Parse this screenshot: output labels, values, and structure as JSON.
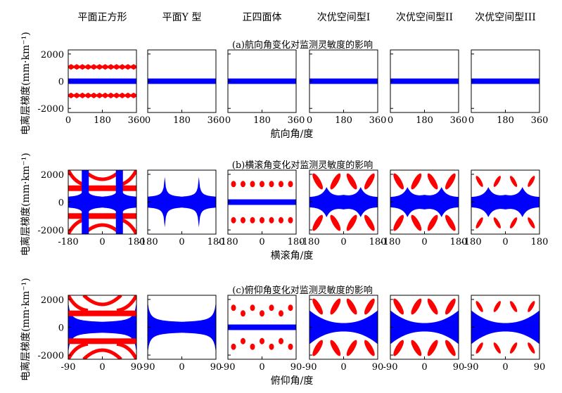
{
  "column_titles": [
    "平面正方形",
    "平面Y 型",
    "正四面体",
    "次优空间型I",
    "次优空间型II",
    "次优空间型III"
  ],
  "ylabel": "电离层梯度(mm·km⁻¹)",
  "colors": {
    "blue": "#0000ff",
    "red": "#ff0000",
    "frame": "#000000"
  },
  "chart_data": [
    {
      "type": "area",
      "title": "(a)航向角变化对监测灵敏度的影响",
      "xlabel": "航向角/度",
      "ylabel": "电离层梯度(mm·km⁻¹)",
      "xlim": [
        0,
        360
      ],
      "ylim": [
        -2300,
        2300
      ],
      "xticks": [
        0,
        180,
        360
      ],
      "yticks": [
        2000,
        0,
        -2000
      ],
      "series": [
        {
          "color": "blue",
          "panels": "all",
          "shape": "flat band",
          "y_range": [
            -200,
            200
          ]
        },
        {
          "color": "red",
          "panels": [
            "平面正方形"
          ],
          "shape": "wavy band",
          "y_range": [
            920,
            1180
          ]
        },
        {
          "color": "red",
          "panels": [
            "平面正方形"
          ],
          "shape": "wavy band",
          "y_range": [
            -1180,
            -920
          ]
        }
      ]
    },
    {
      "type": "area",
      "title": "(b)横滚角变化对监测灵敏度的影响",
      "xlabel": "横滚角/度",
      "ylabel": "电离层梯度(mm·km⁻¹)",
      "xlim": [
        -180,
        180
      ],
      "ylim": [
        -2300,
        2300
      ],
      "xticks": [
        -180,
        0,
        180
      ],
      "yticks": [
        2000,
        0,
        -2000
      ],
      "series": [
        {
          "color": "blue",
          "panels": [
            "平面正方形",
            "平面Y 型"
          ],
          "shape": "spikes",
          "spike_x": [
            -90,
            90
          ]
        },
        {
          "color": "blue",
          "panels": [
            "正四面体"
          ],
          "shape": "flat band",
          "y_range": [
            -200,
            200
          ]
        },
        {
          "color": "blue",
          "panels": [
            "次优空间型I",
            "次优空间型II",
            "次优空间型III"
          ],
          "shape": "bulges",
          "spike_x": [
            -90,
            90
          ]
        },
        {
          "color": "red",
          "panels": [
            "平面正方形",
            "正四面体",
            "次优空间型I",
            "次优空间型II",
            "次优空间型III"
          ],
          "shape": "blobs"
        }
      ]
    },
    {
      "type": "area",
      "title": "(c)俯仰角变化对监测灵敏度的影响",
      "xlabel": "俯仰角/度",
      "ylabel": "电离层梯度(mm·km⁻¹)",
      "xlim": [
        -90,
        90
      ],
      "ylim": [
        -2300,
        2300
      ],
      "xticks": [
        -90,
        0,
        90
      ],
      "yticks": [
        2000,
        0,
        -2000
      ],
      "series": [
        {
          "color": "blue",
          "panels": [
            "平面正方形",
            "平面Y 型"
          ],
          "shape": "edge spikes",
          "spike_x": [
            -90,
            90
          ]
        },
        {
          "color": "blue",
          "panels": [
            "正四面体"
          ],
          "shape": "flat band",
          "y_range": [
            -200,
            200
          ]
        },
        {
          "color": "blue",
          "panels": [
            "次优空间型I",
            "次优空间型II",
            "次优空间型III"
          ],
          "shape": "bowtie"
        },
        {
          "color": "red",
          "panels": [
            "平面正方形",
            "正四面体",
            "次优空间型I",
            "次优空间型II",
            "次优空间型III"
          ],
          "shape": "blobs"
        }
      ]
    }
  ]
}
